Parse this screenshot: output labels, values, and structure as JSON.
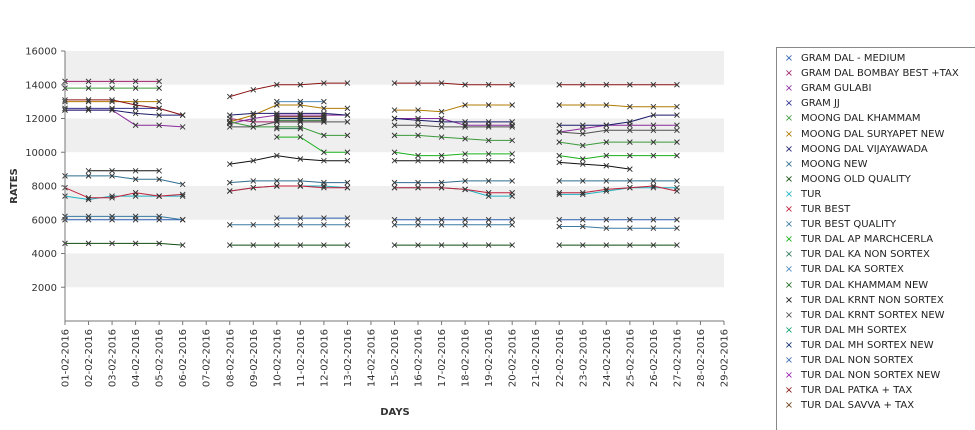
{
  "chart_data": {
    "type": "line",
    "xlabel": "DAYS",
    "ylabel": "RATES",
    "ylim": [
      0,
      16000
    ],
    "y_ticks": [
      2000,
      4000,
      6000,
      8000,
      10000,
      12000,
      14000,
      16000
    ],
    "grid": "alternating horizontal bands",
    "legend_position": "right",
    "categories": [
      "01-02-2016",
      "02-02-2016",
      "03-02-2016",
      "04-02-2016",
      "05-02-2016",
      "06-02-2016",
      "07-02-2016",
      "08-02-2016",
      "09-02-2016",
      "10-02-2016",
      "11-02-2016",
      "12-02-2016",
      "13-02-2016",
      "14-02-2016",
      "15-02-2016",
      "16-02-2016",
      "17-02-2016",
      "18-02-2016",
      "19-02-2016",
      "20-02-2016",
      "21-02-2016",
      "22-02-2016",
      "23-02-2016",
      "24-02-2016",
      "25-02-2016",
      "26-02-2016",
      "27-02-2016",
      "28-02-2016",
      "29-02-2016"
    ],
    "series": [
      {
        "name": "GRAM DAL - MEDIUM",
        "color": "#2a5fb0",
        "values": [
          6000,
          6000,
          6000,
          6000,
          6000,
          6000,
          null,
          null,
          null,
          6100,
          6100,
          6100,
          6100,
          null,
          6000,
          6000,
          6000,
          6000,
          6000,
          6000,
          null,
          6000,
          6000,
          6000,
          6000,
          6000,
          6000,
          null,
          null
        ]
      },
      {
        "name": "GRAM DAL BOMBAY BEST +TAX",
        "color": "#a0206a",
        "values": [
          14200,
          14200,
          14200,
          14200,
          14200,
          null,
          null,
          12000,
          11800,
          11800,
          11800,
          11800,
          null,
          null,
          null,
          null,
          null,
          null,
          null,
          null,
          null,
          null,
          null,
          null,
          null,
          null,
          null,
          null,
          null
        ]
      },
      {
        "name": "GRAM GULABI",
        "color": "#8a2a9c",
        "values": [
          12500,
          12500,
          12500,
          11600,
          11600,
          11500,
          null,
          11700,
          12000,
          12200,
          12200,
          12200,
          12200,
          null,
          12000,
          12000,
          12000,
          11600,
          11600,
          11600,
          null,
          11200,
          11400,
          11600,
          11600,
          11600,
          11600,
          null,
          null
        ]
      },
      {
        "name": "GRAM JJ",
        "color": "#2f2f8f",
        "values": [
          12600,
          12600,
          12600,
          12600,
          12600,
          null,
          null,
          null,
          null,
          null,
          null,
          null,
          null,
          null,
          null,
          null,
          null,
          null,
          null,
          null,
          null,
          null,
          null,
          null,
          null,
          null,
          null,
          null,
          null
        ]
      },
      {
        "name": "MOONG DAL KHAMMAM",
        "color": "#3a9a3a",
        "values": [
          13800,
          13800,
          13800,
          13800,
          13800,
          null,
          null,
          11800,
          11500,
          11500,
          11500,
          11000,
          11000,
          null,
          11000,
          11000,
          10900,
          10800,
          10700,
          10700,
          null,
          10600,
          10400,
          10600,
          10600,
          10600,
          10600,
          null,
          null
        ]
      },
      {
        "name": "MOONG DAL SURYAPET NEW",
        "color": "#b07a00",
        "values": [
          13000,
          13000,
          13000,
          13000,
          13000,
          null,
          null,
          11800,
          12200,
          12800,
          12800,
          12600,
          12600,
          null,
          12500,
          12500,
          12400,
          12800,
          12800,
          12800,
          null,
          12800,
          12800,
          12800,
          12700,
          12700,
          12700,
          null,
          null
        ]
      },
      {
        "name": "MOONG DAL VIJAYAWADA",
        "color": "#1a1a6a",
        "values": [
          12500,
          12500,
          12500,
          12300,
          12200,
          12200,
          null,
          12200,
          12300,
          12300,
          12300,
          12300,
          12200,
          null,
          12000,
          11900,
          11800,
          11800,
          11800,
          11800,
          null,
          11600,
          11600,
          11600,
          11800,
          12200,
          12200,
          null,
          null
        ]
      },
      {
        "name": "MOONG NEW",
        "color": "#2e6d8e",
        "values": [
          8600,
          8600,
          8600,
          8400,
          8400,
          8100,
          null,
          8200,
          8300,
          8300,
          8300,
          8200,
          8200,
          null,
          8200,
          8200,
          8200,
          8300,
          8300,
          8300,
          null,
          8300,
          8300,
          8300,
          8300,
          8300,
          8300,
          null,
          null
        ]
      },
      {
        "name": "MOONG OLD QUALITY",
        "color": "#0f4a0f",
        "values": [
          4600,
          4600,
          4600,
          4600,
          4600,
          4500,
          null,
          4500,
          4500,
          4500,
          4500,
          4500,
          4500,
          null,
          4500,
          4500,
          4500,
          4500,
          4500,
          4500,
          null,
          4500,
          4500,
          4500,
          4500,
          4500,
          4500,
          null,
          null
        ]
      },
      {
        "name": "TUR",
        "color": "#20b0c0",
        "values": [
          7400,
          7200,
          7400,
          7400,
          7400,
          7400,
          null,
          7700,
          7900,
          8000,
          8000,
          8000,
          7900,
          null,
          7900,
          7900,
          7900,
          7800,
          7400,
          7400,
          null,
          7500,
          7500,
          7700,
          7900,
          7900,
          7900,
          null,
          null
        ]
      },
      {
        "name": "TUR BEST",
        "color": "#c0203a",
        "values": [
          7900,
          7300,
          7300,
          7600,
          7400,
          7500,
          null,
          7700,
          7900,
          8000,
          8000,
          7900,
          7900,
          null,
          7900,
          7900,
          7900,
          7800,
          7600,
          7600,
          null,
          7600,
          7600,
          7800,
          7900,
          8000,
          7700,
          null,
          null
        ]
      },
      {
        "name": "TUR BEST QUALITY",
        "color": "#3a7aa0",
        "values": [
          6200,
          6200,
          6200,
          6200,
          6200,
          6000,
          null,
          5700,
          5700,
          5700,
          5700,
          5700,
          5700,
          null,
          5700,
          5700,
          5700,
          5700,
          5700,
          5700,
          null,
          5600,
          5600,
          5500,
          5500,
          5500,
          5500,
          null,
          null
        ]
      },
      {
        "name": "TUR DAL AP MARCHCERLA",
        "color": "#18b018",
        "values": [
          null,
          null,
          null,
          null,
          null,
          null,
          null,
          null,
          null,
          10900,
          10900,
          10000,
          10000,
          null,
          10000,
          9800,
          9800,
          9900,
          9900,
          9900,
          null,
          9800,
          9600,
          9800,
          9800,
          9800,
          9800,
          null,
          null
        ]
      },
      {
        "name": "TUR DAL KA NON SORTEX",
        "color": "#2e7a5a",
        "values": [
          null,
          null,
          null,
          null,
          null,
          null,
          null,
          null,
          null,
          11400,
          11400,
          null,
          null,
          null,
          null,
          null,
          null,
          null,
          null,
          null,
          null,
          null,
          null,
          null,
          null,
          null,
          null,
          null,
          null
        ]
      },
      {
        "name": "TUR DAL KA SORTEX",
        "color": "#4a8ac0",
        "values": [
          null,
          null,
          null,
          null,
          null,
          null,
          null,
          null,
          null,
          13000,
          13000,
          13000,
          null,
          null,
          null,
          null,
          null,
          null,
          null,
          null,
          null,
          null,
          null,
          null,
          null,
          null,
          null,
          null,
          null
        ]
      },
      {
        "name": "TUR DAL KHAMMAM NEW",
        "color": "#206a20",
        "values": [
          null,
          null,
          null,
          null,
          null,
          null,
          null,
          null,
          null,
          11900,
          11900,
          11900,
          null,
          null,
          null,
          null,
          null,
          null,
          null,
          null,
          null,
          null,
          null,
          null,
          null,
          null,
          null,
          null,
          null
        ]
      },
      {
        "name": "TUR DAL KRNT NON SORTEX",
        "color": "#101010",
        "values": [
          null,
          8900,
          8900,
          8900,
          8900,
          null,
          null,
          9300,
          9500,
          9800,
          9600,
          9500,
          9500,
          null,
          9500,
          9500,
          9500,
          9500,
          9500,
          9500,
          null,
          9400,
          9300,
          9200,
          9000,
          null,
          null,
          null,
          null
        ]
      },
      {
        "name": "TUR DAL KRNT SORTEX NEW",
        "color": "#505050",
        "values": [
          null,
          null,
          null,
          null,
          null,
          null,
          null,
          11500,
          11500,
          11800,
          11800,
          11800,
          11800,
          null,
          11600,
          11600,
          11500,
          11500,
          11500,
          11500,
          null,
          11200,
          11100,
          11300,
          11300,
          11300,
          11300,
          null,
          null
        ]
      },
      {
        "name": "TUR DAL MH SORTEX",
        "color": "#10a070",
        "values": [
          null,
          null,
          null,
          null,
          null,
          null,
          null,
          null,
          null,
          null,
          null,
          null,
          null,
          null,
          null,
          null,
          null,
          null,
          null,
          null,
          null,
          null,
          null,
          null,
          null,
          null,
          null,
          null,
          null
        ]
      },
      {
        "name": "TUR DAL MH SORTEX NEW",
        "color": "#0a2a6a",
        "values": [
          null,
          null,
          null,
          null,
          null,
          null,
          null,
          null,
          null,
          12000,
          12000,
          12000,
          null,
          null,
          null,
          null,
          null,
          null,
          null,
          null,
          null,
          null,
          null,
          null,
          null,
          null,
          null,
          null,
          null
        ]
      },
      {
        "name": "TUR DAL NON SORTEX",
        "color": "#3a6ab0",
        "values": [
          null,
          null,
          null,
          null,
          null,
          null,
          null,
          null,
          null,
          null,
          null,
          null,
          null,
          null,
          null,
          null,
          null,
          null,
          null,
          null,
          null,
          null,
          null,
          null,
          null,
          null,
          null,
          null,
          null
        ]
      },
      {
        "name": "TUR DAL NON SORTEX NEW",
        "color": "#9a20b0",
        "values": [
          null,
          null,
          null,
          null,
          null,
          null,
          null,
          null,
          null,
          12100,
          12100,
          12100,
          null,
          null,
          null,
          null,
          null,
          null,
          null,
          null,
          null,
          null,
          null,
          null,
          null,
          null,
          null,
          null,
          null
        ]
      },
      {
        "name": "TUR DAL PATKA + TAX",
        "color": "#8a1010",
        "values": [
          13100,
          13100,
          13100,
          12800,
          12600,
          12200,
          null,
          13300,
          13700,
          14000,
          14000,
          14100,
          14100,
          null,
          14100,
          14100,
          14100,
          14000,
          14000,
          14000,
          null,
          14000,
          14000,
          14000,
          14000,
          14000,
          14000,
          null,
          null
        ]
      },
      {
        "name": "TUR DAL SAVVA + TAX",
        "color": "#6a3a10",
        "values": [
          null,
          null,
          null,
          null,
          null,
          null,
          null,
          null,
          null,
          12100,
          12100,
          12100,
          null,
          null,
          null,
          null,
          null,
          null,
          null,
          null,
          null,
          null,
          null,
          null,
          null,
          null,
          null,
          null,
          null
        ]
      }
    ]
  }
}
